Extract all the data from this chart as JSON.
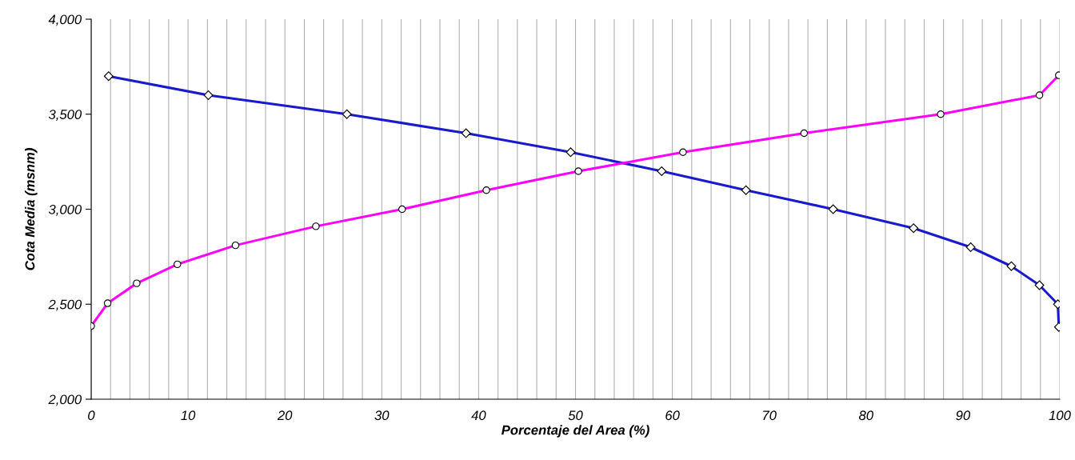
{
  "chart_data": {
    "type": "line",
    "xlabel": "Porcentaje del Area (%)",
    "ylabel": "Cota Media (msnm)",
    "xlim": [
      0,
      100
    ],
    "ylim": [
      2000,
      4000
    ],
    "xticks": [
      0,
      {
        "value": 2,
        "label": null
      },
      {
        "value": 4,
        "label": null
      },
      {
        "value": 6,
        "label": null
      },
      {
        "value": 8,
        "label": null
      },
      10,
      {
        "value": 12,
        "label": null
      },
      {
        "value": 14,
        "label": null
      },
      {
        "value": 16,
        "label": null
      },
      {
        "value": 18,
        "label": null
      },
      20,
      {
        "value": 22,
        "label": null
      },
      {
        "value": 24,
        "label": null
      },
      {
        "value": 26,
        "label": null
      },
      {
        "value": 28,
        "label": null
      },
      30,
      {
        "value": 32,
        "label": null
      },
      {
        "value": 34,
        "label": null
      },
      {
        "value": 36,
        "label": null
      },
      {
        "value": 38,
        "label": null
      },
      40,
      {
        "value": 42,
        "label": null
      },
      {
        "value": 44,
        "label": null
      },
      {
        "value": 46,
        "label": null
      },
      {
        "value": 48,
        "label": null
      },
      50,
      {
        "value": 52,
        "label": null
      },
      {
        "value": 54,
        "label": null
      },
      {
        "value": 56,
        "label": null
      },
      {
        "value": 58,
        "label": null
      },
      60,
      {
        "value": 62,
        "label": null
      },
      {
        "value": 64,
        "label": null
      },
      {
        "value": 66,
        "label": null
      },
      {
        "value": 68,
        "label": null
      },
      70,
      {
        "value": 72,
        "label": null
      },
      {
        "value": 74,
        "label": null
      },
      {
        "value": 76,
        "label": null
      },
      {
        "value": 78,
        "label": null
      },
      80,
      {
        "value": 82,
        "label": null
      },
      {
        "value": 84,
        "label": null
      },
      {
        "value": 86,
        "label": null
      },
      {
        "value": 88,
        "label": null
      },
      90,
      {
        "value": 92,
        "label": null
      },
      {
        "value": 94,
        "label": null
      },
      {
        "value": 96,
        "label": null
      },
      {
        "value": 98,
        "label": null
      },
      100
    ],
    "yticks": [
      {
        "value": 2000,
        "label": "2,000"
      },
      {
        "value": 2500,
        "label": "2,500"
      },
      {
        "value": 3000,
        "label": "3,000"
      },
      {
        "value": 3500,
        "label": "3,500"
      },
      {
        "value": 4000,
        "label": "4,000"
      }
    ],
    "grid": "x",
    "legend": false,
    "series": [
      {
        "color": "#1a1acd",
        "marker": "diamond",
        "x": [
          1.8,
          12.1,
          26.4,
          38.7,
          49.5,
          58.9,
          67.6,
          76.6,
          84.9,
          90.8,
          95.0,
          97.9,
          99.8,
          99.9
        ],
        "values": [
          3700,
          3600,
          3500,
          3400,
          3300,
          3200,
          3100,
          3000,
          2900,
          2800,
          2700,
          2600,
          2500,
          2380
        ]
      },
      {
        "color": "#ff00ff",
        "marker": "circle",
        "x": [
          0,
          1.7,
          4.7,
          8.9,
          14.9,
          23.2,
          32.1,
          40.8,
          50.3,
          61.1,
          73.6,
          87.7,
          97.9,
          99.9
        ],
        "values": [
          2385,
          2505,
          2610,
          2710,
          2810,
          2910,
          3000,
          3100,
          3200,
          3300,
          3400,
          3500,
          3600,
          3705
        ]
      }
    ]
  }
}
